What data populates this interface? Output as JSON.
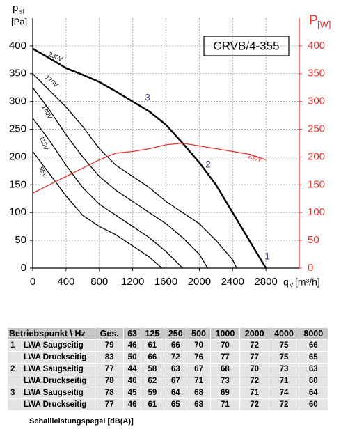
{
  "chart_data": {
    "type": "line",
    "model_label": "CRVB/4-355",
    "y_label": "p",
    "y_label_sub": "sf",
    "y_unit": "[Pa]",
    "y2_label": "P",
    "y2_label_sub": "[W]",
    "x_label": "q",
    "x_label_sub": "V",
    "x_unit": "[m³/h]",
    "point_labels": [
      "3",
      "2",
      "1"
    ],
    "xlim": [
      0,
      3200
    ],
    "xticks": [
      0,
      400,
      800,
      1200,
      1600,
      2000,
      2400,
      2800
    ],
    "ylim": [
      0,
      450
    ],
    "yticks": [
      0,
      50,
      100,
      150,
      200,
      250,
      300,
      350,
      400
    ],
    "y2lim": [
      0,
      450
    ],
    "y2ticks": [
      0,
      50,
      100,
      150,
      200,
      250,
      300,
      350,
      400
    ],
    "y2_color": "#e8312a",
    "grid": true,
    "series": [
      {
        "name": "230V",
        "color": "#000000",
        "line_width": 2.5,
        "x": [
          0,
          200,
          400,
          600,
          800,
          1000,
          1200,
          1400,
          1600,
          1800,
          2000,
          2200,
          2400,
          2600,
          2800
        ],
        "values": [
          395,
          378,
          360,
          348,
          335,
          318,
          300,
          282,
          258,
          225,
          190,
          150,
          100,
          50,
          0
        ]
      },
      {
        "name": "170V",
        "color": "#000000",
        "line_width": 1.3,
        "x": [
          0,
          200,
          400,
          600,
          800,
          1000,
          1200,
          1400,
          1600,
          1800,
          2000,
          2200,
          2400,
          2450
        ],
        "values": [
          350,
          320,
          290,
          255,
          215,
          185,
          165,
          145,
          120,
          100,
          80,
          50,
          15,
          0
        ]
      },
      {
        "name": "140V",
        "color": "#000000",
        "line_width": 1.3,
        "x": [
          0,
          200,
          400,
          600,
          800,
          1000,
          1200,
          1400,
          1600,
          1800,
          2000,
          2100
        ],
        "values": [
          325,
          285,
          240,
          200,
          165,
          140,
          120,
          100,
          80,
          55,
          25,
          0
        ]
      },
      {
        "name": "115V",
        "color": "#000000",
        "line_width": 1.3,
        "x": [
          0,
          200,
          400,
          600,
          800,
          1000,
          1200,
          1400,
          1600,
          1800
        ],
        "values": [
          270,
          230,
          185,
          145,
          115,
          95,
          75,
          55,
          30,
          0
        ]
      },
      {
        "name": "95V",
        "color": "#000000",
        "line_width": 1.3,
        "x": [
          0,
          200,
          400,
          600,
          800,
          1000,
          1200,
          1400,
          1550
        ],
        "values": [
          210,
          170,
          130,
          95,
          75,
          60,
          40,
          20,
          0
        ]
      },
      {
        "name": "230V",
        "color": "#e8312a",
        "line_width": 1.3,
        "axis": "y2",
        "x": [
          0,
          200,
          400,
          600,
          800,
          1000,
          1200,
          1400,
          1600,
          1800,
          2000,
          2200,
          2400,
          2600,
          2800
        ],
        "values": [
          135,
          150,
          165,
          180,
          195,
          207,
          210,
          215,
          222,
          225,
          220,
          215,
          210,
          205,
          195
        ]
      }
    ]
  },
  "table": {
    "header": [
      "Betriebspunkt \\ Hz",
      "Ges.",
      "63",
      "125",
      "250",
      "500",
      "1000",
      "2000",
      "4000",
      "8000"
    ],
    "rows": [
      {
        "point": "1",
        "label": "LWA Saugseitig",
        "values": [
          79,
          46,
          61,
          66,
          70,
          70,
          72,
          75,
          66
        ]
      },
      {
        "label": "LWA Druckseitig",
        "values": [
          83,
          50,
          66,
          72,
          76,
          77,
          77,
          75,
          65
        ]
      },
      {
        "point": "2",
        "label": "LWA Saugseitig",
        "values": [
          77,
          44,
          58,
          63,
          67,
          68,
          70,
          73,
          63
        ]
      },
      {
        "label": "LWA Druckseitig",
        "values": [
          78,
          46,
          62,
          67,
          71,
          73,
          72,
          71,
          60
        ]
      },
      {
        "point": "3",
        "label": "LWA Saugseitig",
        "values": [
          78,
          45,
          59,
          64,
          68,
          69,
          71,
          74,
          64
        ]
      },
      {
        "label": "LWA Druckseitig",
        "values": [
          77,
          46,
          61,
          65,
          68,
          71,
          72,
          72,
          60
        ]
      }
    ],
    "footer": "Schallleistungspegel [dB(A)]"
  }
}
